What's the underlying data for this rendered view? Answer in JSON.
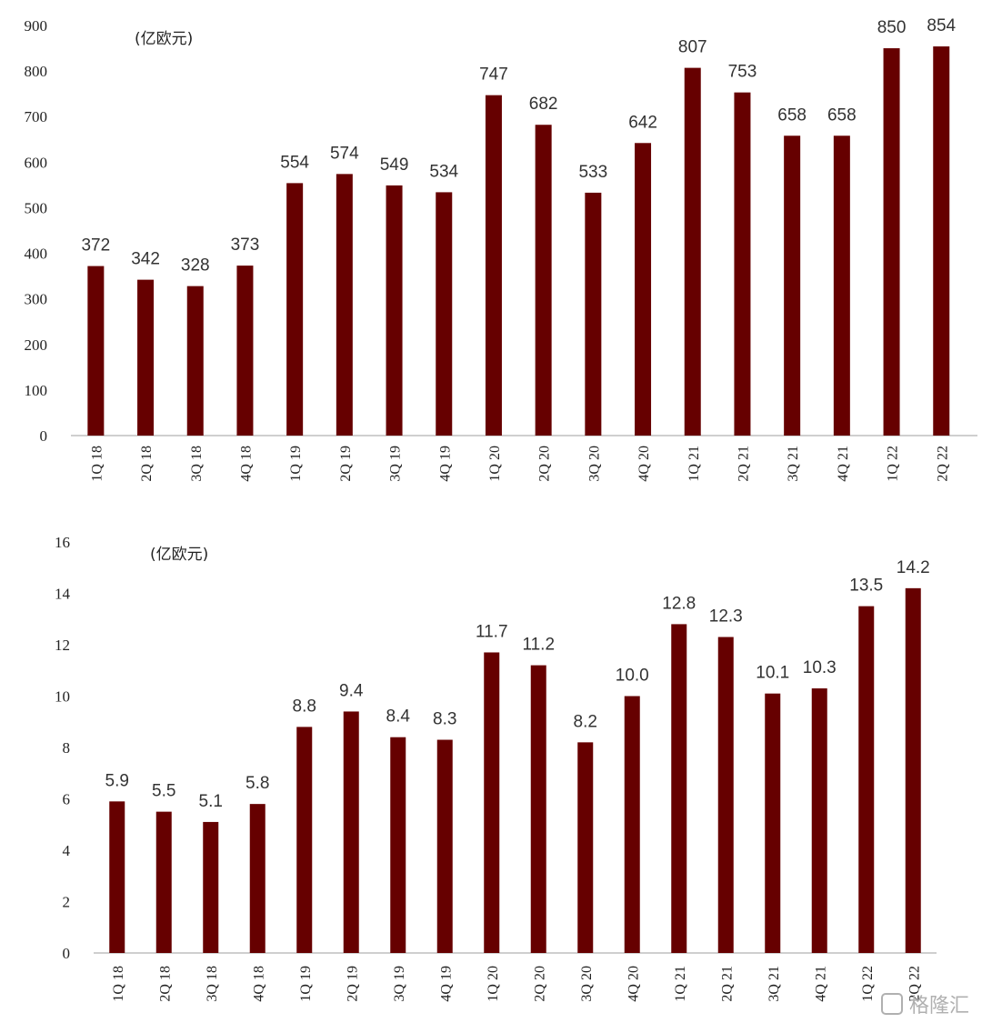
{
  "chart_data": [
    {
      "type": "bar",
      "unit_label": "(亿欧元)",
      "categories": [
        "1Q 18",
        "2Q 18",
        "3Q 18",
        "4Q 18",
        "1Q 19",
        "2Q 19",
        "3Q 19",
        "4Q 19",
        "1Q 20",
        "2Q 20",
        "3Q 20",
        "4Q 20",
        "1Q 21",
        "2Q 21",
        "3Q 21",
        "4Q 21",
        "1Q 22",
        "2Q 22"
      ],
      "values": [
        372,
        342,
        328,
        373,
        554,
        574,
        549,
        534,
        747,
        682,
        533,
        642,
        807,
        753,
        658,
        658,
        850,
        854
      ],
      "value_labels": [
        "372",
        "342",
        "328",
        "373",
        "554",
        "574",
        "549",
        "534",
        "747",
        "682",
        "533",
        "642",
        "807",
        "753",
        "658",
        "658",
        "850",
        "854"
      ],
      "ylim": [
        0,
        900
      ],
      "yticks": [
        "0",
        "100",
        "200",
        "300",
        "400",
        "500",
        "600",
        "700",
        "800",
        "900"
      ],
      "bar_color": "#660000",
      "grid": false
    },
    {
      "type": "bar",
      "unit_label": "(亿欧元)",
      "categories": [
        "1Q 18",
        "2Q 18",
        "3Q 18",
        "4Q 18",
        "1Q 19",
        "2Q 19",
        "3Q 19",
        "4Q 19",
        "1Q 20",
        "2Q 20",
        "3Q 20",
        "4Q 20",
        "1Q 21",
        "2Q 21",
        "3Q 21",
        "4Q 21",
        "1Q 22",
        "2Q 22"
      ],
      "values": [
        5.9,
        5.5,
        5.1,
        5.8,
        8.8,
        9.4,
        8.4,
        8.3,
        11.7,
        11.2,
        8.2,
        10.0,
        12.8,
        12.3,
        10.1,
        10.3,
        13.5,
        14.2
      ],
      "value_labels": [
        "5.9",
        "5.5",
        "5.1",
        "5.8",
        "8.8",
        "9.4",
        "8.4",
        "8.3",
        "11.7",
        "11.2",
        "8.2",
        "10.0",
        "12.8",
        "12.3",
        "10.1",
        "10.3",
        "13.5",
        "14.2"
      ],
      "ylim": [
        0,
        16
      ],
      "yticks": [
        "0",
        "2",
        "4",
        "6",
        "8",
        "10",
        "12",
        "14",
        "16"
      ],
      "bar_color": "#660000",
      "grid": false
    }
  ],
  "watermark": "格隆汇"
}
